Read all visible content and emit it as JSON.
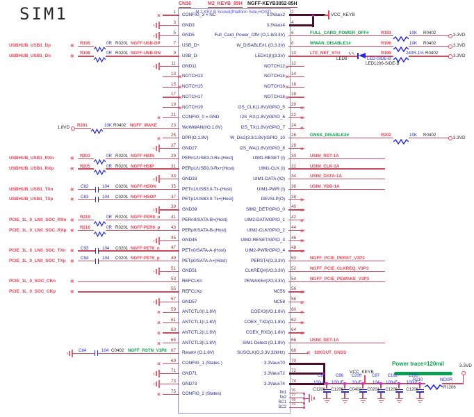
{
  "title": "SIM1",
  "connector": {
    "refdes": "CN16",
    "part": "M2_KEYB_85H",
    "mpn": "NGFF-KEYB3052-85H",
    "subtitle": "M.2 KEY B Socket(Platform Side,HOST)"
  },
  "top_power": {
    "flag": "VCC_KEYB"
  },
  "rows": [
    {
      "lp": "1",
      "ln": "CONFIG_3 = NC",
      "lc": {
        "t": "nc"
      },
      "rp": "2",
      "rn": "3.3Vaux2",
      "rc": {
        "t": "bus2a"
      }
    },
    {
      "lp": "3",
      "ln": "GND3",
      "lc": {
        "t": "gnd"
      },
      "rp": "4",
      "rn": "3.3Vaux4",
      "rc": {
        "t": "bus2b"
      }
    },
    {
      "lp": "5",
      "ln": "GND5",
      "lc": {
        "t": "gnd"
      },
      "rp": "6",
      "rn": "Full_Card_Power_Off# (O,1.8/3.3V)",
      "rc": {
        "t": "pullr",
        "net": "FULL_CARD_POWER_OFF#",
        "ref": "R193",
        "val": "10K",
        "fp": "R0402",
        "rail": "3.3VD"
      }
    },
    {
      "lp": "7",
      "ln": "USB_D+",
      "lc": {
        "t": "rc",
        "sig": "USBHUB_USB1_Dp",
        "ref": "R195",
        "glyph": "res",
        "val": "0R",
        "fp": "R0201",
        "net": "NGFF-USB-DP"
      },
      "rp": "8",
      "rn": "W_DISABLE#1 (O,3.3V)",
      "rc": {
        "t": "pullr",
        "net": "WWAN_DISABLE1#",
        "ref": "R196",
        "val": "10K",
        "fp": "R0402",
        "rail": "3.3VD"
      }
    },
    {
      "lp": "9",
      "ln": "USB_D-",
      "lc": {
        "t": "rc",
        "sig": "USBHUB_USB1_Dn",
        "ref": "R198",
        "glyph": "res",
        "val": "0R",
        "fp": "R0201",
        "net": "NGFF-USB-DN"
      },
      "rp": "10",
      "rn": "LED#1(I)(3.3V)",
      "rc": {
        "t": "led",
        "net": "LTE_NET_STU",
        "led_ref": "LED8",
        "led_name": "LED-SIDE-B",
        "led_fp": "LED1206-SIDE-B",
        "ref": "R199",
        "val": "240R-1%",
        "fp": "R0402",
        "rail": "3.3VD"
      }
    },
    {
      "lp": "11",
      "ln": "GND11",
      "lc": {
        "t": "gnd"
      },
      "rp": "12",
      "rn": "NOTCH12",
      "rc": {
        "t": "ncin"
      }
    },
    {
      "lp": "13",
      "ln": "NOTCH13",
      "lc": {
        "t": "ncin"
      },
      "rp": "14",
      "rn": "NOTCH14",
      "rc": {
        "t": "ncin"
      }
    },
    {
      "lp": "15",
      "ln": "NOTCH15",
      "lc": {
        "t": "ncin"
      },
      "rp": "16",
      "rn": "NOTCH16",
      "rc": {
        "t": "ncin"
      }
    },
    {
      "lp": "17",
      "ln": "NOTCH17",
      "lc": {
        "t": "ncin"
      },
      "rp": "18",
      "rn": "NOTCH18",
      "rc": {
        "t": "ncin"
      }
    },
    {
      "lp": "19",
      "ln": "NOTCH19",
      "lc": {
        "t": "ncin"
      },
      "rp": "20",
      "rn": "I2S_CLK(1.8V)/GPIO_5",
      "rc": {
        "t": "nc"
      }
    },
    {
      "lp": "21",
      "ln": "CONFIG_0 = GND",
      "lc": {
        "t": "nc"
      },
      "rp": "22",
      "rn": "I2S_RX(1.8V)/GPIO_6",
      "rc": {
        "t": "nc"
      }
    },
    {
      "lp": "23",
      "ln": "WoWWAN(I/O,1.8V)",
      "lc": {
        "t": "pull",
        "rail": "1.8VD",
        "ref": "R201",
        "val": "10K",
        "fp": "R0402",
        "net": "NGFF_WAKE"
      },
      "rp": "24",
      "rn": "I2S_TX(1.8V)/GPIO_7",
      "rc": {
        "t": "nc"
      }
    },
    {
      "lp": "25",
      "ln": "DPR(O,1.8V)",
      "lc": {
        "t": "nc"
      },
      "rp": "26",
      "rn": "W_Dis2(3.3/1.8V)/GPIO_10",
      "rc": {
        "t": "pullr",
        "net": "GNSS_DISABLE2#",
        "ref": "R202",
        "val": "10K",
        "fp": "R0402",
        "rail": "3.3VD"
      }
    },
    {
      "lp": "27",
      "ln": "GND27",
      "lc": {
        "t": "gnd"
      },
      "rp": "28",
      "rn": "I2S_WA(1.8V)/GPIO_8",
      "rc": {
        "t": "nc"
      }
    },
    {
      "lp": "29",
      "ln": "PERn1/USB3.0-Rx-(Host)",
      "lc": {
        "t": "rc",
        "sig": "USBHUB_USB1_RXn",
        "ref": "R203",
        "glyph": "res",
        "val": "0R",
        "fp": "R0201",
        "net": "NGFF-HSIN"
      },
      "rp": "30",
      "rn": "UIM1-RESET (I)",
      "rc": {
        "t": "netl",
        "net": "USIM_RST-1A"
      }
    },
    {
      "lp": "31",
      "ln": "PERp1/USB3.0-Rx+(Host)",
      "lc": {
        "t": "rc",
        "sig": "USBHUB_USB1_RXp",
        "ref": "R205",
        "glyph": "res",
        "val": "0R",
        "fp": "R0201",
        "net": "NGFF-HSIP"
      },
      "rp": "32",
      "rn": "UIM1-CLK (I)",
      "rc": {
        "t": "netl",
        "net": "USIM_CLK-1A"
      }
    },
    {
      "lp": "33",
      "ln": "GND33",
      "lc": {
        "t": "gnd"
      },
      "rp": "34",
      "rn": "UIM1-DATA (IO)",
      "rc": {
        "t": "netl",
        "net": "USIM_DATA-1A"
      }
    },
    {
      "lp": "35",
      "ln": "PETn1/USB3.0-Tx-(Host)",
      "lc": {
        "t": "rc",
        "sig": "USBHUB_USB1_TXn",
        "ref": "C82",
        "glyph": "cap",
        "val": "104",
        "fp": "C0201",
        "net": "NGFF-HSON"
      },
      "rp": "36",
      "rn": "UIM1-PWR (I)",
      "rc": {
        "t": "netl",
        "net": "USIM_VDD-1A"
      }
    },
    {
      "lp": "37",
      "ln": "PETp1/USB3.0-Tx+(Host)",
      "lc": {
        "t": "rc",
        "sig": "USBHUB_USB1_TXp",
        "ref": "C83",
        "glyph": "cap",
        "val": "104",
        "fp": "C0201",
        "net": "NGFF-HSOP"
      },
      "rp": "38",
      "rn": "DEVSLP(O)",
      "rc": {
        "t": "nc"
      }
    },
    {
      "lp": "39",
      "ln": "GND39",
      "lc": {
        "t": "gnd"
      },
      "rp": "40",
      "rn": "SIM2_DET/GPIO_0",
      "rc": {
        "t": "nc"
      }
    },
    {
      "lp": "41",
      "ln": "PERn0/SATA-B+(Host)",
      "lc": {
        "t": "rc",
        "sig": "PCIE_1L_0_LN0_SOC_RXn",
        "ref": "R219",
        "glyph": "res",
        "val": "0R",
        "fp": "R0201",
        "net": "NGFF-PER0_n"
      },
      "rp": "42",
      "rn": "UIM2-DATA/GPIO_1",
      "rc": {
        "t": "nc"
      }
    },
    {
      "lp": "43",
      "ln": "PERp0/SATA-B-(Host)",
      "lc": {
        "t": "rc",
        "sig": "PCIE_1L_0_LN0_SOC_RXp",
        "ref": "R216",
        "glyph": "res",
        "val": "0R",
        "fp": "R0201",
        "net": "NGFF-PER0_p"
      },
      "rp": "44",
      "rn": "UIM2-CLK/GPIO_2",
      "rc": {
        "t": "nc"
      }
    },
    {
      "lp": "45",
      "ln": "GND45",
      "lc": {
        "t": "gnd"
      },
      "rp": "46",
      "rn": "UIM2-RESET/GPIO_3",
      "rc": {
        "t": "nc"
      }
    },
    {
      "lp": "47",
      "ln": "PETn0/SATA-A-(Host)",
      "lc": {
        "t": "rc",
        "sig": "PCIE_1L_0_LN0_SOC_TXn",
        "ref": "C93",
        "glyph": "cap",
        "val": "104",
        "fp": "C0201",
        "net": "NGFF-PET0_n"
      },
      "rp": "48",
      "rn": "UIM2-PWR/GPIO_4",
      "rc": {
        "t": "nc"
      }
    },
    {
      "lp": "49",
      "ln": "PETp0/SATA-A+(Host)",
      "lc": {
        "t": "rc",
        "sig": "PCIE_1L_0_LN0_SOC_TXp",
        "ref": "C94",
        "glyph": "cap",
        "val": "104",
        "fp": "C0201",
        "net": "NGFF-PET0_p"
      },
      "rp": "50",
      "rn": "PERST#(O,3.3V)",
      "rc": {
        "t": "netl",
        "net": "NGFF_PCIE_PERST_V3P3"
      }
    },
    {
      "lp": "51",
      "ln": "GND51",
      "lc": {
        "t": "gnd"
      },
      "rp": "52",
      "rn": "CLKREQ#(I/O,3.3V)",
      "rc": {
        "t": "netl",
        "net": "NGFF_PCIE_CLKREQ_V3P3"
      }
    },
    {
      "lp": "53",
      "ln": "REFCLKn",
      "lc": {
        "t": "sig",
        "sig": "PCIE_1L_0_SOC_CKn"
      },
      "rp": "54",
      "rn": "PEWAKE#(I/O,3.3V)",
      "rc": {
        "t": "netl",
        "net": "NGFF_PCIE_PEWAKE_V3P3"
      }
    },
    {
      "lp": "55",
      "ln": "REFCLKp",
      "lc": {
        "t": "sig",
        "sig": "PCIE_1L_0_SOC_CKp"
      },
      "rp": "56",
      "rn": "NC56",
      "rc": {
        "t": "nc"
      }
    },
    {
      "lp": "57",
      "ln": "GND57",
      "lc": {
        "t": "gnd"
      },
      "rp": "58",
      "rn": "NC58",
      "rc": {
        "t": "nc"
      }
    },
    {
      "lp": "59",
      "ln": "ANTCTL0(I,1.8V)",
      "lc": {
        "t": "nc"
      },
      "rp": "60",
      "rn": "COEX3(I/O,1.8V)",
      "rc": {
        "t": "nc"
      }
    },
    {
      "lp": "61",
      "ln": "ANTCTL1(I,1.8V)",
      "lc": {
        "t": "nc"
      },
      "rp": "62",
      "rn": "COEX_TXD(O,1.8V)",
      "rc": {
        "t": "nc"
      }
    },
    {
      "lp": "63",
      "ln": "ANTCTL2(I,1.8V)",
      "lc": {
        "t": "nc"
      },
      "rp": "64",
      "rn": "COEX_RXD(I,1.8V)",
      "rc": {
        "t": "nc"
      }
    },
    {
      "lp": "65",
      "ln": "ANTCTL3(I,1.8V)",
      "lc": {
        "t": "nc"
      },
      "rp": "66",
      "rn": "SIM1 Detect (O,1.8V)",
      "rc": {
        "t": "netl",
        "net": "USIM_DET-1A"
      }
    },
    {
      "lp": "67",
      "ln": "Reset# (O,1.8V)",
      "lc": {
        "t": "capgnd",
        "ref": "C84",
        "val": "104",
        "fp": "C0402",
        "net": "NGFF_RSTN_V1P8"
      },
      "rp": "68",
      "rn": "SUSCLK(O,3.3V,32kHz)",
      "rc": {
        "t": "recv",
        "net": "32KOUT_GNSS"
      }
    },
    {
      "lp": "69",
      "ln": "CONFIG_1 (States )",
      "lc": {
        "t": "nc"
      },
      "rp": "70",
      "rn": "3.3Vaux70",
      "rc": {
        "t": "bus3"
      }
    },
    {
      "lp": "71",
      "ln": "GND71",
      "lc": {
        "t": "gnd"
      },
      "rp": "72",
      "rn": "3.3Vaux72",
      "rc": {
        "t": "bus3"
      }
    },
    {
      "lp": "73",
      "ln": "GND73",
      "lc": {
        "t": "gnd"
      },
      "rp": "74",
      "rn": "3.3Vaux74",
      "rc": {
        "t": "bus3"
      }
    },
    {
      "lp": "75",
      "ln": "CONFIG_2 (States)",
      "lc": {
        "t": "nc"
      },
      "rp": "",
      "rn": "",
      "rc": {
        "t": "none"
      }
    }
  ],
  "fix_pins": [
    {
      "num": "76",
      "name": "fix1"
    },
    {
      "num": "77",
      "name": "fix2"
    },
    {
      "num": "78",
      "name": "SC1"
    },
    {
      "num": "79",
      "name": "SC2"
    }
  ],
  "rail": {
    "flag": "VCC_KEYB",
    "note": "Power trace=120mil",
    "net": "3.3VD",
    "res": {
      "ref": "R210",
      "val": "NC\\0R",
      "fp": "R1206"
    },
    "caps": [
      {
        "ref": "C85",
        "val": "100uF",
        "fp": "C1206"
      },
      {
        "ref": "C86",
        "val": "100uF",
        "fp": "C1206"
      },
      {
        "ref": "C200",
        "val": "10uF",
        "fp": "C0402"
      },
      {
        "ref": "C87",
        "val": "104",
        "fp": "C0201"
      },
      {
        "ref": "C192",
        "val": "100uF",
        "fp": "C1206"
      },
      {
        "ref": "C193",
        "val": "100uF",
        "fp": "C1206"
      }
    ]
  },
  "colors": {
    "wire": "#c94b5e",
    "bus": "#4a0d2a",
    "red": "#ee4053",
    "green": "#0aa04f",
    "blue": "#2626e0",
    "navy": "#1c1c86",
    "pin_num": "#952c2c",
    "black": "#222222",
    "magenta": "#dd22dd",
    "ground": "#e26672",
    "border": "#8f8fd4",
    "subtitle": "#4646ea"
  }
}
